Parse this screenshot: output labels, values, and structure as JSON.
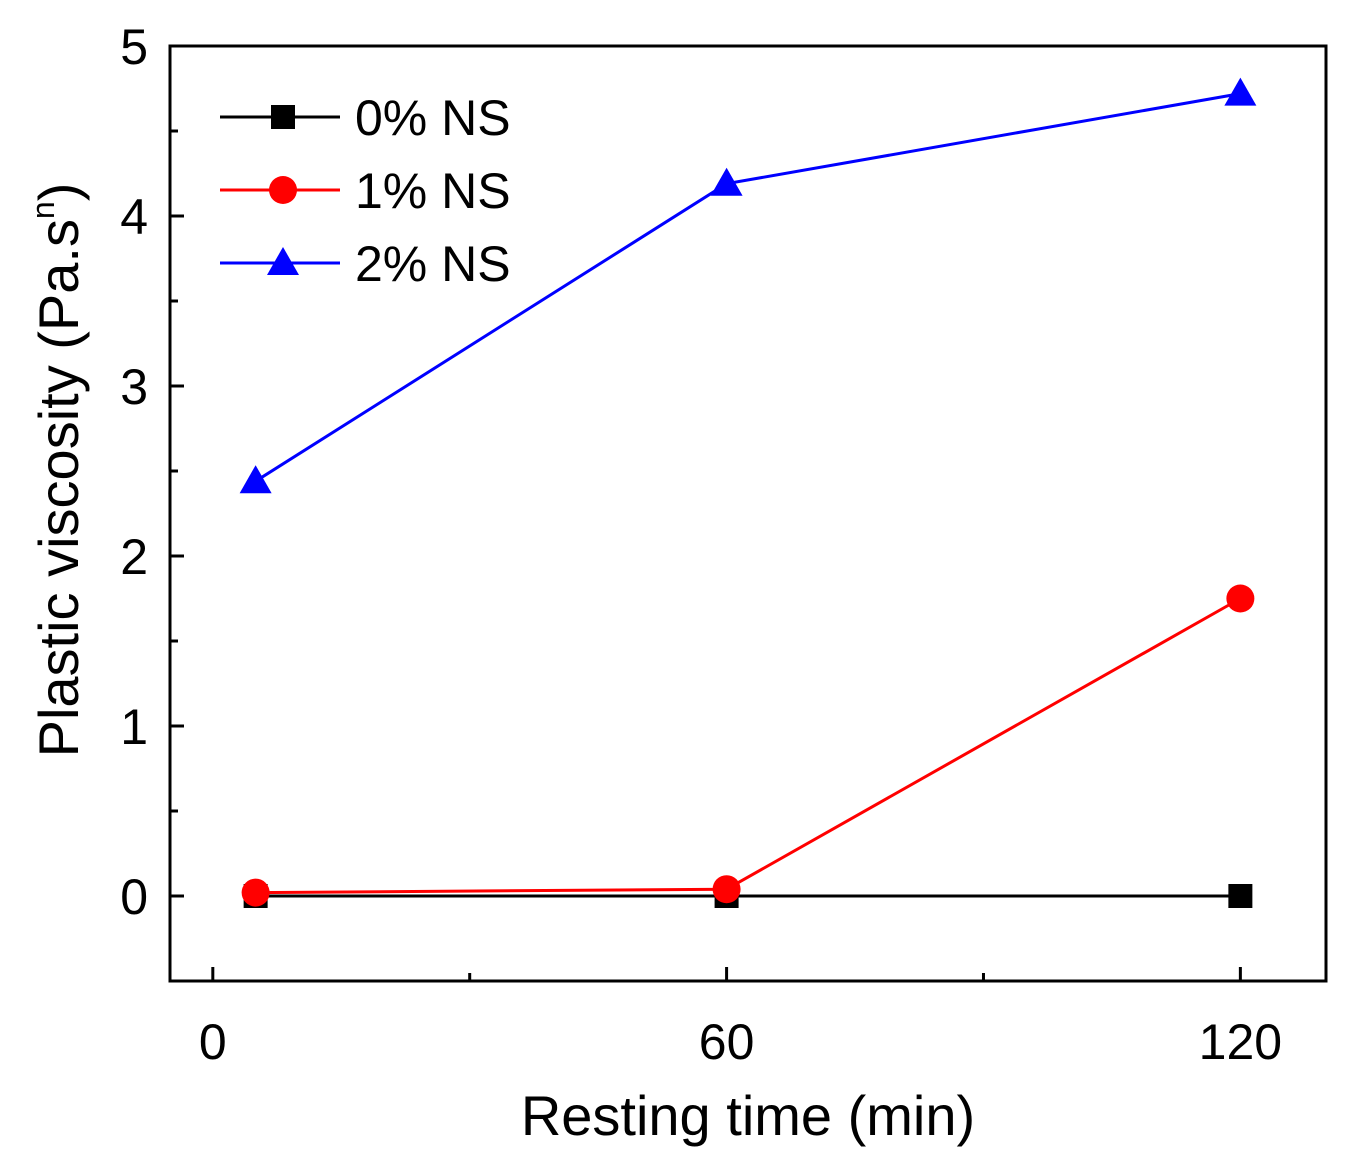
{
  "chart_data": {
    "type": "line",
    "title": "",
    "xlabel": "Resting time (min)",
    "ylabel": "Plastic viscosity (Pa.s",
    "ylabel_superscript": "n",
    "ylabel_close": ")",
    "xlim": [
      -5,
      130
    ],
    "ylim": [
      -0.5,
      5
    ],
    "x_ticks": [
      0,
      60,
      120
    ],
    "x_tick_labels": [
      "0",
      "60",
      "120"
    ],
    "y_ticks": [
      0,
      1,
      2,
      3,
      4,
      5
    ],
    "y_tick_labels": [
      "0",
      "1",
      "2",
      "3",
      "4",
      "5"
    ],
    "grid": false,
    "legend_position": "top-left",
    "series": [
      {
        "name": "0% NS",
        "color": "#000000",
        "marker": "square",
        "x": [
          5,
          60,
          120
        ],
        "y": [
          0.0,
          0.0,
          0.0
        ]
      },
      {
        "name": "1% NS",
        "color": "#ff0000",
        "marker": "circle",
        "x": [
          5,
          60,
          120
        ],
        "y": [
          0.02,
          0.04,
          1.75
        ]
      },
      {
        "name": "2% NS",
        "color": "#0000ff",
        "marker": "triangle",
        "x": [
          5,
          60,
          120
        ],
        "y": [
          2.44,
          4.19,
          4.72
        ]
      }
    ]
  }
}
